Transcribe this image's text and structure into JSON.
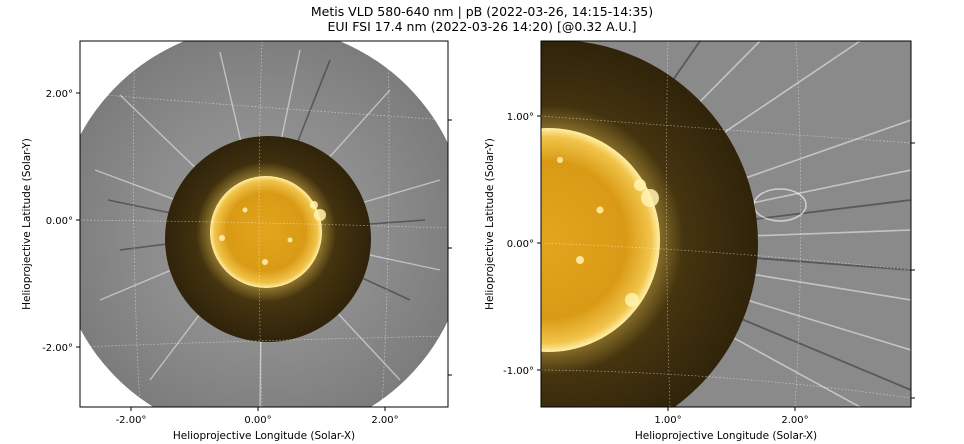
{
  "figure": {
    "title_line1": "Metis VLD 580-640 nm | pB (2022-03-26, 14:15-14:35)",
    "title_line2": "EUI FSI 17.4 nm (2022-03-26 14:20) [@0.32 A.U.]"
  },
  "left_panel": {
    "xlabel": "Helioprojective Longitude (Solar-X)",
    "ylabel": "Helioprojective Latitude (Solar-Y)",
    "x_ticks": [
      "-2.00°",
      "0.00°",
      "2.00°"
    ],
    "y_ticks": [
      "2.00°",
      "0.00°",
      "-2.00°"
    ]
  },
  "right_panel": {
    "xlabel": "Helioprojective Longitude (Solar-X)",
    "ylabel": "Helioprojective Latitude (Solar-Y)",
    "x_ticks": [
      "1.00°",
      "2.00°"
    ],
    "y_ticks": [
      "1.00°",
      "0.00°",
      "-1.00°"
    ]
  },
  "colors": {
    "corona_gray": "#8a8a8a",
    "euv_dark": "#3a2c0c",
    "sun_gold": "#e0a31c",
    "sun_highlight": "#fff3b0"
  }
}
